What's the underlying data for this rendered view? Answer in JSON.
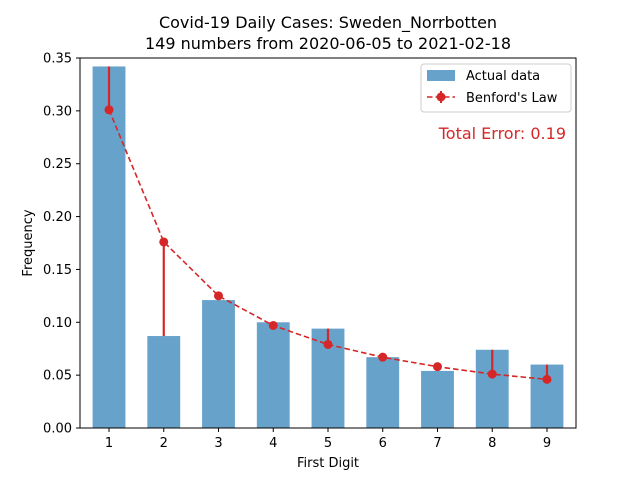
{
  "chart_data": {
    "type": "bar",
    "title_line1": "Covid-19 Daily Cases: Sweden_Norrbotten",
    "title_line2": "149 numbers from 2020-06-05 to 2021-02-18",
    "xlabel": "First Digit",
    "ylabel": "Frequency",
    "categories": [
      1,
      2,
      3,
      4,
      5,
      6,
      7,
      8,
      9
    ],
    "ylim": [
      0,
      0.35
    ],
    "yticks": [
      "0.00",
      "0.05",
      "0.10",
      "0.15",
      "0.20",
      "0.25",
      "0.30",
      "0.35"
    ],
    "series": [
      {
        "name": "Actual data",
        "values": [
          0.342,
          0.087,
          0.121,
          0.1,
          0.094,
          0.067,
          0.054,
          0.074,
          0.06
        ],
        "color": "#5f9dc8"
      },
      {
        "name": "Benford's Law",
        "values": [
          0.301,
          0.176,
          0.125,
          0.097,
          0.079,
          0.067,
          0.058,
          0.051,
          0.046
        ],
        "color": "#d62728"
      }
    ],
    "annotation": "Total Error: 0.19",
    "legend_position": "top-right",
    "grid": false
  }
}
